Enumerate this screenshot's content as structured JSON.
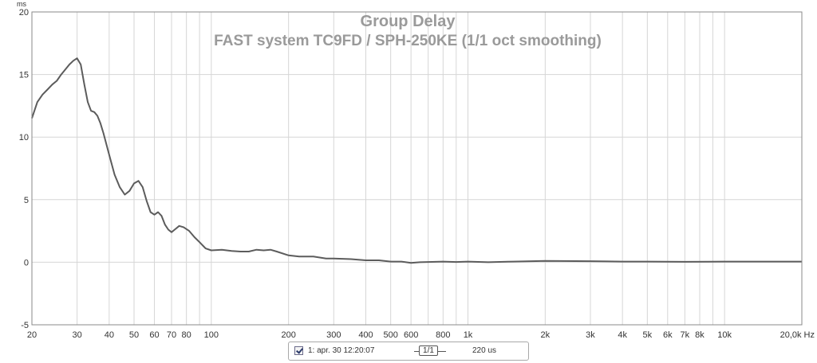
{
  "chart_data": {
    "type": "line",
    "title": "Group Delay",
    "subtitle": "FAST system TC9FD / SPH-250KE (1/1 oct smoothing)",
    "xlabel": "",
    "ylabel": "",
    "y_unit": "ms",
    "x_unit": "Hz",
    "x_scale": "log",
    "xlim": [
      20,
      20000
    ],
    "ylim": [
      -5,
      20
    ],
    "grid": true,
    "y_ticks": [
      {
        "value": -5,
        "label": "-5"
      },
      {
        "value": 0,
        "label": "0"
      },
      {
        "value": 5,
        "label": "5"
      },
      {
        "value": 10,
        "label": "10"
      },
      {
        "value": 15,
        "label": "15"
      },
      {
        "value": 20,
        "label": "20"
      }
    ],
    "x_ticks": [
      {
        "value": 20,
        "label": "20"
      },
      {
        "value": 30,
        "label": "30"
      },
      {
        "value": 40,
        "label": "40"
      },
      {
        "value": 50,
        "label": "50"
      },
      {
        "value": 60,
        "label": "60"
      },
      {
        "value": 70,
        "label": "70"
      },
      {
        "value": 80,
        "label": "80"
      },
      {
        "value": 100,
        "label": "100"
      },
      {
        "value": 200,
        "label": "200"
      },
      {
        "value": 300,
        "label": "300"
      },
      {
        "value": 400,
        "label": "400"
      },
      {
        "value": 500,
        "label": "500"
      },
      {
        "value": 600,
        "label": "600"
      },
      {
        "value": 800,
        "label": "800"
      },
      {
        "value": 1000,
        "label": "1k"
      },
      {
        "value": 2000,
        "label": "2k"
      },
      {
        "value": 3000,
        "label": "3k"
      },
      {
        "value": 4000,
        "label": "4k"
      },
      {
        "value": 5000,
        "label": "5k"
      },
      {
        "value": 6000,
        "label": "6k"
      },
      {
        "value": 7000,
        "label": "7k"
      },
      {
        "value": 8000,
        "label": "8k"
      },
      {
        "value": 10000,
        "label": "10k"
      },
      {
        "value": 20000,
        "label": "20,0k Hz"
      }
    ],
    "x_gridlines": [
      20,
      30,
      40,
      50,
      60,
      70,
      80,
      90,
      100,
      200,
      300,
      400,
      500,
      600,
      700,
      800,
      900,
      1000,
      2000,
      3000,
      4000,
      5000,
      6000,
      7000,
      8000,
      9000,
      10000,
      20000
    ],
    "series": [
      {
        "color": "#5c5c5c",
        "points": [
          [
            20,
            11.5
          ],
          [
            21,
            12.8
          ],
          [
            22,
            13.4
          ],
          [
            23,
            13.8
          ],
          [
            24,
            14.2
          ],
          [
            25,
            14.5
          ],
          [
            26,
            15.0
          ],
          [
            27,
            15.4
          ],
          [
            28,
            15.8
          ],
          [
            29,
            16.1
          ],
          [
            30,
            16.3
          ],
          [
            31,
            15.8
          ],
          [
            32,
            14.2
          ],
          [
            33,
            12.8
          ],
          [
            34,
            12.1
          ],
          [
            35,
            12.0
          ],
          [
            36,
            11.7
          ],
          [
            37,
            11.1
          ],
          [
            38,
            10.3
          ],
          [
            40,
            8.6
          ],
          [
            42,
            7.0
          ],
          [
            44,
            6.0
          ],
          [
            46,
            5.4
          ],
          [
            48,
            5.7
          ],
          [
            50,
            6.3
          ],
          [
            52,
            6.5
          ],
          [
            54,
            6.0
          ],
          [
            56,
            4.9
          ],
          [
            58,
            4.0
          ],
          [
            60,
            3.8
          ],
          [
            62,
            4.0
          ],
          [
            64,
            3.7
          ],
          [
            66,
            3.0
          ],
          [
            68,
            2.6
          ],
          [
            70,
            2.4
          ],
          [
            72,
            2.6
          ],
          [
            75,
            2.9
          ],
          [
            78,
            2.8
          ],
          [
            82,
            2.5
          ],
          [
            86,
            2.0
          ],
          [
            90,
            1.6
          ],
          [
            95,
            1.1
          ],
          [
            100,
            0.95
          ],
          [
            110,
            1.0
          ],
          [
            120,
            0.9
          ],
          [
            130,
            0.85
          ],
          [
            140,
            0.85
          ],
          [
            150,
            1.0
          ],
          [
            160,
            0.95
          ],
          [
            170,
            1.0
          ],
          [
            180,
            0.85
          ],
          [
            200,
            0.55
          ],
          [
            220,
            0.45
          ],
          [
            250,
            0.45
          ],
          [
            280,
            0.3
          ],
          [
            300,
            0.3
          ],
          [
            350,
            0.25
          ],
          [
            400,
            0.15
          ],
          [
            450,
            0.15
          ],
          [
            500,
            0.05
          ],
          [
            550,
            0.05
          ],
          [
            600,
            -0.05
          ],
          [
            650,
            0.0
          ],
          [
            700,
            0.02
          ],
          [
            800,
            0.05
          ],
          [
            900,
            0.02
          ],
          [
            1000,
            0.05
          ],
          [
            1200,
            0.0
          ],
          [
            1500,
            0.05
          ],
          [
            2000,
            0.1
          ],
          [
            3000,
            0.08
          ],
          [
            4000,
            0.05
          ],
          [
            5000,
            0.05
          ],
          [
            7000,
            0.03
          ],
          [
            10000,
            0.05
          ],
          [
            15000,
            0.05
          ],
          [
            20000,
            0.05
          ]
        ]
      }
    ]
  },
  "legend": {
    "checked": true,
    "label": "1: apr. 30 12:20:07",
    "smoothing": "1/1",
    "offset": "220 us"
  }
}
